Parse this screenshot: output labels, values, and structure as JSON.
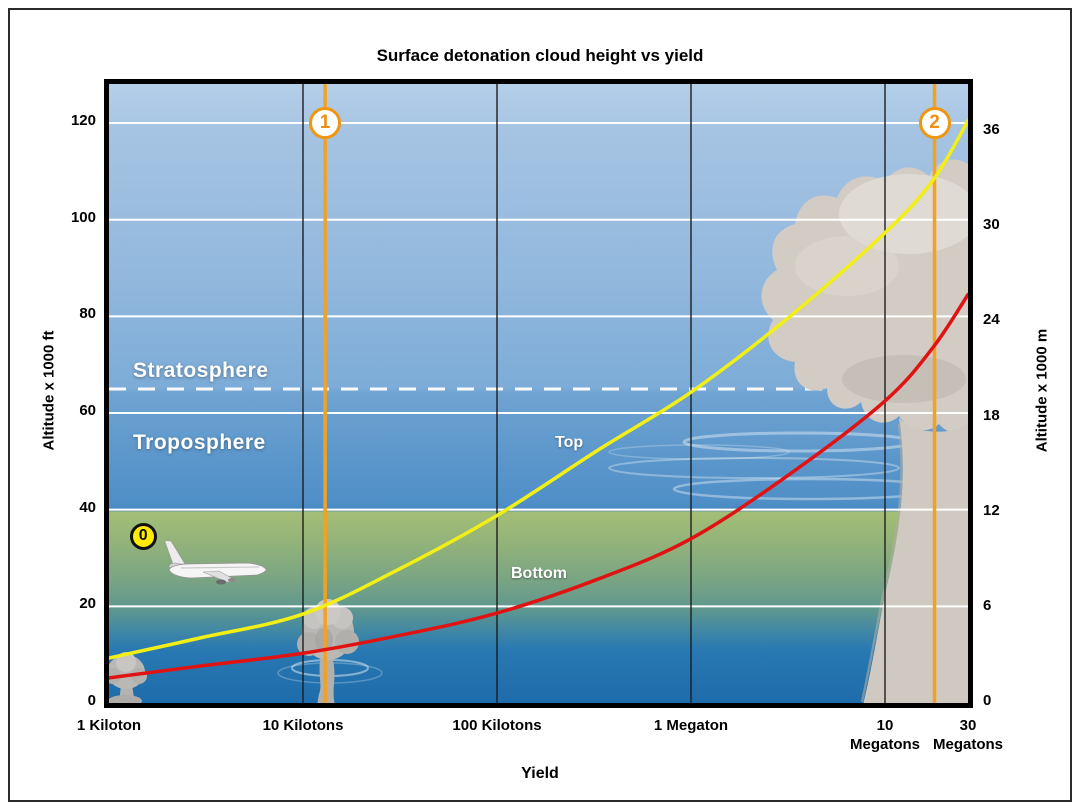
{
  "title": "Surface detonation cloud height vs yield",
  "axes": {
    "left_title": "Altitude x 1000 ft",
    "right_title": "Altitude x 1000 m",
    "x_title": "Yield",
    "left_ticks": [
      0,
      20,
      40,
      60,
      80,
      100,
      120
    ],
    "right_ticks": [
      0,
      6,
      12,
      18,
      24,
      30,
      36
    ],
    "x_ticks": [
      {
        "kt": 1,
        "lines": [
          "1 Kiloton"
        ]
      },
      {
        "kt": 10,
        "lines": [
          "10 Kilotons"
        ]
      },
      {
        "kt": 100,
        "lines": [
          "100 Kilotons"
        ]
      },
      {
        "kt": 1000,
        "lines": [
          "1 Megaton"
        ]
      },
      {
        "kt": 10000,
        "lines": [
          "10",
          "Megatons"
        ]
      },
      {
        "kt": 30000,
        "lines": [
          "30",
          "Megatons"
        ]
      }
    ]
  },
  "zones": {
    "stratosphere": "Stratosphere",
    "troposphere": "Troposphere"
  },
  "series_labels": {
    "top": "Top",
    "bottom": "Bottom"
  },
  "markers": [
    {
      "label": "0",
      "x_kt": 1.5,
      "alt_kft": 34.5,
      "line": false,
      "style": "yellow"
    },
    {
      "label": "1",
      "x_kt": 13,
      "alt_kft": 120,
      "line": true,
      "style": "orange"
    },
    {
      "label": "2",
      "x_kt": 18000,
      "alt_kft": 120,
      "line": true,
      "style": "orange"
    }
  ],
  "colors": {
    "top_curve": "#f2ef16",
    "bottom_curve": "#e11212",
    "orange_line": "#f5a01e",
    "gridline_h": "#ffffff",
    "gridline_v": "#1a1a1a",
    "tropopause": "#ffffff"
  },
  "chart_data": {
    "type": "line",
    "title": "Surface detonation cloud height vs yield",
    "xlabel": "Yield",
    "ylabel_left": "Altitude x 1000 ft",
    "ylabel_right": "Altitude x 1000 m",
    "x_scale": "log",
    "x_unit": "kilotons",
    "x_range_kt": [
      1,
      30000
    ],
    "ylim_kft": [
      0,
      128
    ],
    "y_ticks_left_kft": [
      0,
      20,
      40,
      60,
      80,
      100,
      120
    ],
    "y_ticks_right_km": [
      0,
      6,
      12,
      18,
      24,
      30,
      36
    ],
    "tropopause_kft": 65,
    "zones": [
      {
        "name": "Stratosphere",
        "above_kft": 65
      },
      {
        "name": "Troposphere",
        "below_kft": 65
      }
    ],
    "series": [
      {
        "name": "Top",
        "color": "#f2ef16",
        "points_kt_kft": [
          [
            1,
            9.3
          ],
          [
            2.9,
            13.4
          ],
          [
            10,
            18.4
          ],
          [
            31.6,
            27.8
          ],
          [
            100,
            38.8
          ],
          [
            340,
            52.6
          ],
          [
            1000,
            64.3
          ],
          [
            3240,
            80
          ],
          [
            10000,
            97.3
          ],
          [
            17700,
            108.2
          ],
          [
            27000,
            120.5
          ]
        ]
      },
      {
        "name": "Bottom",
        "color": "#e11212",
        "points_kt_kft": [
          [
            1,
            5.2
          ],
          [
            2.9,
            7.6
          ],
          [
            10,
            10.3
          ],
          [
            31.6,
            14
          ],
          [
            100,
            18.6
          ],
          [
            340,
            25.8
          ],
          [
            1000,
            34
          ],
          [
            3240,
            47.4
          ],
          [
            10000,
            62.5
          ],
          [
            17700,
            73.6
          ],
          [
            27000,
            84.5
          ]
        ]
      }
    ],
    "annotations": [
      {
        "label": "0",
        "x_kt": 1.5,
        "alt_kft": 34.5
      },
      {
        "label": "1",
        "x_kt": 13,
        "vertical_line": true
      },
      {
        "label": "2",
        "x_kt": 18000,
        "vertical_line": true
      }
    ]
  }
}
